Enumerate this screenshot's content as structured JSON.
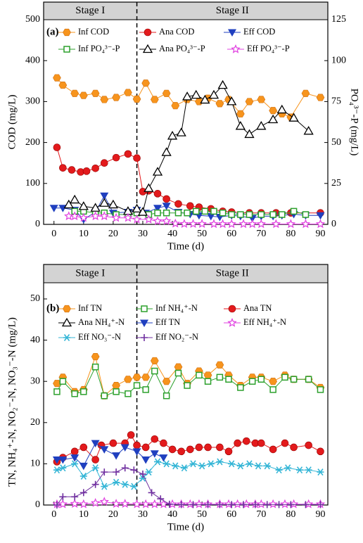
{
  "chart_data": [
    {
      "type": "line",
      "panel_label": "(a)",
      "stage_labels": [
        "Stage I",
        "Stage II"
      ],
      "divider_x": 28,
      "xlabel": "Time (d)",
      "ylabel": "COD (mg/L)",
      "y2label": "PO₄³⁻-P (mg/L)",
      "xlim": [
        -3.5,
        92.5
      ],
      "xticks": [
        0,
        10,
        20,
        30,
        40,
        50,
        60,
        70,
        80,
        90
      ],
      "ylim": [
        0,
        500
      ],
      "yticks": [
        0,
        100,
        200,
        300,
        400,
        500
      ],
      "y2lim": [
        0,
        125
      ],
      "y2ticks": [
        0,
        25,
        50,
        75,
        100,
        125
      ],
      "series": [
        {
          "name": "Inf COD",
          "color": "#f7941d",
          "marker": "hexagon",
          "axis": "y",
          "x": [
            1,
            3,
            7,
            10,
            14,
            17,
            21,
            25,
            28,
            31,
            34,
            38,
            41,
            45,
            49,
            52,
            56,
            59,
            63,
            66,
            70,
            74,
            77,
            80,
            85,
            90
          ],
          "values": [
            358,
            340,
            320,
            315,
            320,
            305,
            310,
            322,
            306,
            345,
            305,
            320,
            290,
            305,
            300,
            308,
            295,
            305,
            270,
            300,
            305,
            278,
            270,
            262,
            320,
            310
          ]
        },
        {
          "name": "Ana COD",
          "color": "#e31a1c",
          "marker": "circle",
          "axis": "y",
          "x": [
            1,
            3,
            6,
            9,
            11,
            14,
            17,
            21,
            25,
            28,
            30,
            32,
            35,
            38,
            42,
            46,
            49,
            53,
            57,
            60,
            66,
            70,
            75,
            80,
            90
          ],
          "values": [
            188,
            138,
            133,
            128,
            130,
            137,
            150,
            163,
            172,
            162,
            80,
            82,
            75,
            62,
            50,
            45,
            42,
            38,
            32,
            30,
            28,
            28,
            28,
            28,
            28
          ]
        },
        {
          "name": "Eff COD",
          "color": "#1f3fbf",
          "marker": "tri-down",
          "axis": "y",
          "x": [
            0,
            3,
            7,
            10,
            14,
            17,
            20,
            25,
            28,
            31,
            35,
            38,
            42,
            46,
            49,
            53,
            56,
            60,
            63,
            67,
            70,
            74,
            77,
            81,
            85,
            90
          ],
          "values": [
            40,
            40,
            35,
            12,
            30,
            70,
            28,
            30,
            35,
            28,
            40,
            45,
            30,
            25,
            22,
            20,
            18,
            22,
            20,
            15,
            20,
            20,
            22,
            25,
            22,
            22
          ]
        },
        {
          "name": "Inf PO₄³⁻-P",
          "color": "#2ca02c",
          "marker": "square",
          "axis": "y2",
          "x": [
            7,
            10,
            14,
            17,
            21,
            25,
            28,
            32,
            35,
            38,
            42,
            45,
            48,
            51,
            54,
            57,
            60,
            63,
            66,
            70,
            74,
            77,
            81,
            85
          ],
          "values": [
            8,
            8,
            7,
            7,
            6,
            6,
            7,
            6,
            7,
            7,
            7,
            7,
            8,
            8,
            8,
            7,
            6,
            6,
            6,
            6,
            6,
            6,
            8,
            6
          ]
        },
        {
          "name": "Ana PO₄³⁻-P",
          "color": "#000000",
          "marker": "tri-up",
          "axis": "y2",
          "x": [
            5,
            7,
            10,
            14,
            17,
            20,
            25,
            28,
            30,
            32,
            35,
            38,
            40,
            43,
            45,
            48,
            51,
            54,
            57,
            60,
            63,
            66,
            70,
            74,
            77,
            81,
            86
          ],
          "values": [
            12,
            15,
            11,
            10,
            13,
            12,
            8,
            9.5,
            7.5,
            22,
            32,
            44,
            54,
            56,
            78,
            79,
            76,
            79,
            85,
            75,
            60,
            55,
            60,
            64,
            70,
            65,
            57
          ]
        },
        {
          "name": "Eff PO₄³⁻-P",
          "color": "#e040e0",
          "marker": "star",
          "axis": "y2",
          "x": [
            5,
            7,
            10,
            14,
            17,
            21,
            25,
            28,
            32,
            35,
            38,
            41,
            44,
            47,
            50,
            54,
            57,
            60,
            64,
            67,
            70,
            75,
            80,
            85,
            90
          ],
          "values": [
            5,
            5,
            4,
            5,
            5,
            4,
            4,
            3,
            3,
            2,
            2,
            0.5,
            0.3,
            0.3,
            0.3,
            0.2,
            0.2,
            0.2,
            0.2,
            0.2,
            0.2,
            0.2,
            0.2,
            0.2,
            0.2
          ]
        }
      ]
    },
    {
      "type": "line",
      "panel_label": "(b)",
      "stage_labels": [
        "Stage I",
        "Stage II"
      ],
      "divider_x": 28,
      "xlabel": "Time (d)",
      "ylabel": "TN, NH₄⁺-N, NO₂⁻-N, NO₃⁻-N (mg/L)",
      "xlim": [
        -3.5,
        92.5
      ],
      "xticks": [
        0,
        10,
        20,
        30,
        40,
        50,
        60,
        70,
        80,
        90
      ],
      "ylim": [
        0,
        50
      ],
      "yticks": [
        0,
        10,
        20,
        30,
        40,
        50
      ],
      "series": [
        {
          "name": "Inf TN",
          "color": "#f7941d",
          "marker": "hexagon",
          "x": [
            1,
            3,
            7,
            10,
            14,
            17,
            21,
            25,
            28,
            31,
            34,
            38,
            42,
            45,
            49,
            52,
            56,
            59,
            63,
            67,
            70,
            74,
            78,
            81,
            86,
            90
          ],
          "values": [
            29.5,
            31,
            27.5,
            28,
            36,
            26.5,
            29,
            30.5,
            31,
            31,
            35,
            30,
            33.5,
            29.5,
            32.5,
            31.5,
            34,
            31.5,
            29,
            31,
            31,
            30,
            31.5,
            30.5,
            30.5,
            28.5
          ]
        },
        {
          "name": "Inf NH₄⁺-N",
          "color": "#2ca02c",
          "marker": "square",
          "x": [
            1,
            3,
            7,
            10,
            14,
            17,
            21,
            25,
            28,
            31,
            34,
            38,
            42,
            45,
            49,
            52,
            56,
            59,
            63,
            67,
            70,
            74,
            78,
            81,
            86,
            90
          ],
          "values": [
            27.5,
            30,
            27,
            27.5,
            33.5,
            26.5,
            27.5,
            27,
            29,
            28,
            32.5,
            26.5,
            32,
            29,
            31.5,
            30,
            31,
            30.5,
            28.5,
            30,
            30.5,
            28,
            31,
            30.5,
            30.5,
            28
          ]
        },
        {
          "name": "Ana TN",
          "color": "#e31a1c",
          "marker": "circle",
          "x": [
            1,
            3,
            7,
            10,
            14,
            16,
            20,
            24,
            26,
            28,
            31,
            34,
            37,
            40,
            43,
            46,
            49,
            52,
            56,
            59,
            62,
            65,
            68,
            70,
            74,
            78,
            81,
            86,
            90
          ],
          "values": [
            10.5,
            11.5,
            13,
            14,
            11,
            14.5,
            15,
            15,
            17,
            14.5,
            14,
            16,
            15,
            13.5,
            13,
            13.5,
            14,
            14,
            14,
            13,
            15,
            15.5,
            15,
            15,
            13.5,
            15,
            14,
            14.5,
            13
          ]
        },
        {
          "name": "Ana NH₄⁺-N",
          "color": "#000000",
          "marker": "tri-up",
          "x": [],
          "values": []
        },
        {
          "name": "Eff TN",
          "color": "#1f3fbf",
          "marker": "tri-down",
          "x": [
            1,
            3,
            7,
            10,
            14,
            17,
            21,
            24,
            28,
            31,
            34,
            37
          ],
          "values": [
            11,
            11,
            11.5,
            9.5,
            15,
            13.5,
            12,
            14,
            13,
            11,
            12.5,
            11.5
          ]
        },
        {
          "name": "Eff NH₄⁺-N",
          "color": "#e040e0",
          "marker": "star",
          "x": [
            1,
            3,
            7,
            10,
            14,
            17,
            21,
            24,
            28,
            31,
            34,
            37,
            40,
            43,
            46,
            49,
            52,
            56,
            59,
            62,
            65,
            68,
            70,
            74,
            78,
            81,
            86,
            90
          ],
          "values": [
            0.2,
            0.2,
            0.3,
            0.2,
            0.5,
            0.8,
            0.3,
            0.3,
            0.2,
            0.2,
            0.2,
            0.2,
            0.2,
            0.2,
            0.2,
            0.2,
            0.2,
            0.2,
            0.2,
            0.2,
            0.2,
            0.2,
            0.2,
            0.2,
            0.2,
            0.2,
            0.2,
            0.2
          ]
        },
        {
          "name": "Eff NO₃⁻-N",
          "color": "#33b5d6",
          "marker": "asterisk",
          "x": [
            1,
            3,
            7,
            10,
            14,
            17,
            21,
            24,
            27,
            30,
            32,
            35,
            38,
            41,
            44,
            47,
            50,
            53,
            56,
            60,
            63,
            66,
            69,
            72,
            76,
            79,
            83,
            86,
            90
          ],
          "values": [
            8.5,
            9,
            10,
            7,
            9,
            4.5,
            5.5,
            5,
            4.5,
            6.5,
            8,
            10.5,
            10,
            9.5,
            9,
            10,
            9.5,
            10,
            10.5,
            10,
            9.5,
            10,
            9.5,
            9.5,
            8.5,
            9,
            8.5,
            8.5,
            8
          ]
        },
        {
          "name": "Eff NO₂⁻-N",
          "color": "#7030a0",
          "marker": "plus",
          "x": [
            1,
            3,
            7,
            10,
            14,
            17,
            21,
            24,
            27,
            30,
            33,
            36,
            39,
            43,
            47,
            52,
            56,
            60,
            64,
            68,
            72,
            76,
            80,
            85,
            90
          ],
          "values": [
            0,
            2,
            2,
            3,
            5,
            8,
            8,
            9,
            8.5,
            7.5,
            3,
            1.5,
            0.2,
            0.1,
            0.1,
            0.1,
            0.1,
            0.1,
            0.1,
            0.1,
            0.1,
            0.1,
            0.1,
            0.1,
            0.1
          ]
        }
      ]
    }
  ]
}
